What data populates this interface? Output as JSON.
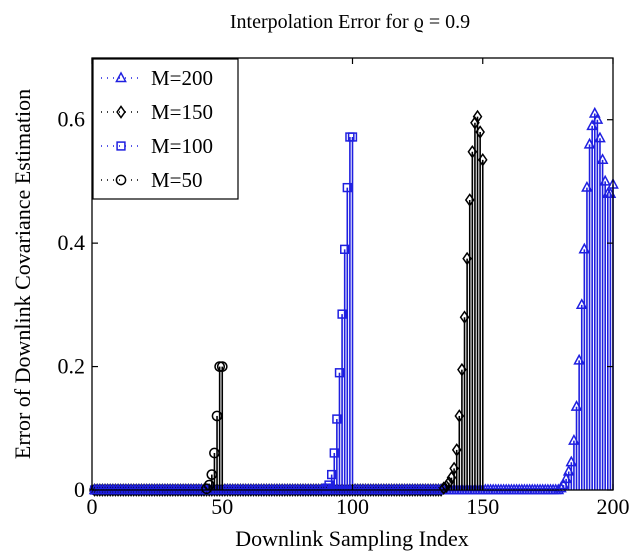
{
  "chart_data": {
    "type": "stem",
    "title": "Interpolation Error for ϱ = 0.9",
    "xlabel": "Downlink Sampling Index",
    "ylabel": "Error of Downlink Covariance Estimation",
    "xlim": [
      0,
      200
    ],
    "ylim": [
      0,
      0.7
    ],
    "xticks": [
      0,
      50,
      100,
      150,
      200
    ],
    "yticks": [
      0,
      0.2,
      0.4,
      0.6
    ],
    "xtick_labels": [
      "0",
      "50",
      "100",
      "150",
      "200"
    ],
    "ytick_labels": [
      "0",
      "0.2",
      "0.4",
      "0.6"
    ],
    "grid": false,
    "legend_position": "top-left",
    "series": [
      {
        "name": "M=200",
        "color": "#1f1fe0",
        "marker": "triangle",
        "x": [
          180,
          181,
          182,
          183,
          184,
          185,
          186,
          187,
          188,
          189,
          190,
          191,
          192,
          193,
          194,
          195,
          196,
          197,
          198,
          199,
          200
        ],
        "y": [
          0.003,
          0.008,
          0.018,
          0.03,
          0.045,
          0.08,
          0.135,
          0.21,
          0.3,
          0.39,
          0.49,
          0.56,
          0.59,
          0.61,
          0.6,
          0.57,
          0.535,
          0.5,
          0.48,
          0.48,
          0.495
        ]
      },
      {
        "name": "M=150",
        "color": "#000000",
        "marker": "diamond",
        "x": [
          135,
          136,
          137,
          138,
          139,
          140,
          141,
          142,
          143,
          144,
          145,
          146,
          147,
          148,
          149,
          150
        ],
        "y": [
          0.003,
          0.006,
          0.012,
          0.02,
          0.035,
          0.065,
          0.12,
          0.195,
          0.28,
          0.375,
          0.47,
          0.548,
          0.595,
          0.605,
          0.58,
          0.535
        ]
      },
      {
        "name": "M=100",
        "color": "#1f1fe0",
        "marker": "square",
        "x": [
          90,
          91,
          92,
          93,
          94,
          95,
          96,
          97,
          98,
          99,
          100
        ],
        "y": [
          0.003,
          0.008,
          0.025,
          0.06,
          0.115,
          0.19,
          0.285,
          0.39,
          0.49,
          0.572,
          0.572
        ]
      },
      {
        "name": "M=50",
        "color": "#000000",
        "marker": "circle",
        "x": [
          44,
          45,
          46,
          47,
          48,
          49,
          50
        ],
        "y": [
          0.002,
          0.008,
          0.025,
          0.06,
          0.12,
          0.2,
          0.2
        ]
      }
    ]
  }
}
